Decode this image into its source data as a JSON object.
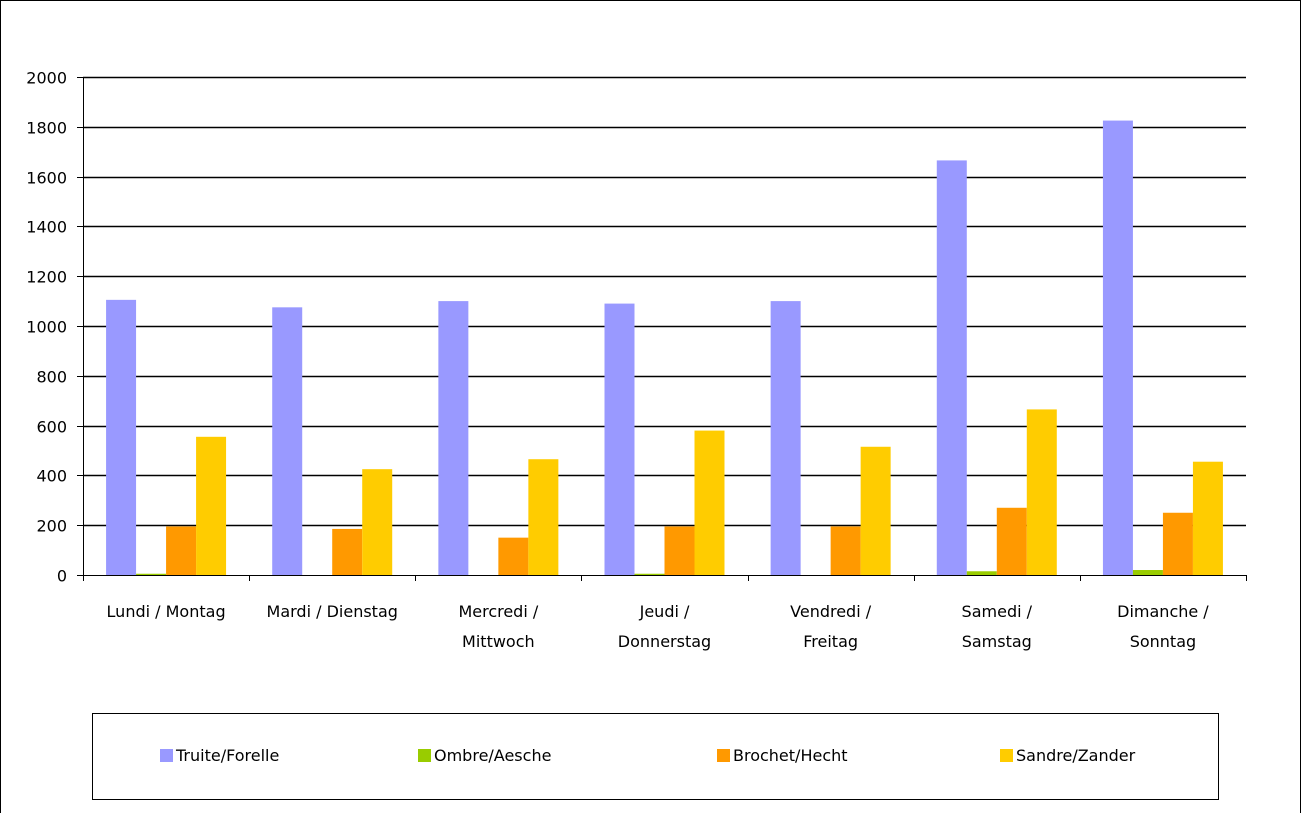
{
  "chart_data": {
    "type": "bar",
    "title": "",
    "xlabel": "",
    "ylabel": "",
    "ylim": [
      0,
      2000
    ],
    "yticks": [
      0,
      200,
      400,
      600,
      800,
      1000,
      1200,
      1400,
      1600,
      1800,
      2000
    ],
    "grid": true,
    "legend_position": "bottom",
    "categories": [
      [
        "Lundi / Montag"
      ],
      [
        "Mardi / Dienstag"
      ],
      [
        "Mercredi /",
        "Mittwoch"
      ],
      [
        "Jeudi /",
        "Donnerstag"
      ],
      [
        "Vendredi /",
        "Freitag"
      ],
      [
        "Samedi /",
        "Samstag"
      ],
      [
        "Dimanche /",
        "Sonntag"
      ]
    ],
    "series": [
      {
        "name": "Truite/Forelle",
        "color": "#9999ff",
        "values": [
          1105,
          1075,
          1100,
          1090,
          1100,
          1665,
          1825
        ]
      },
      {
        "name": "Ombre/Aesche",
        "color": "#99cc00",
        "values": [
          5,
          0,
          0,
          5,
          0,
          15,
          20
        ]
      },
      {
        "name": "Brochet/Hecht",
        "color": "#ff9900",
        "values": [
          195,
          185,
          150,
          195,
          195,
          270,
          250
        ]
      },
      {
        "name": "Sandre/Zander",
        "color": "#ffcc00",
        "values": [
          555,
          425,
          465,
          580,
          515,
          665,
          455
        ]
      }
    ]
  }
}
